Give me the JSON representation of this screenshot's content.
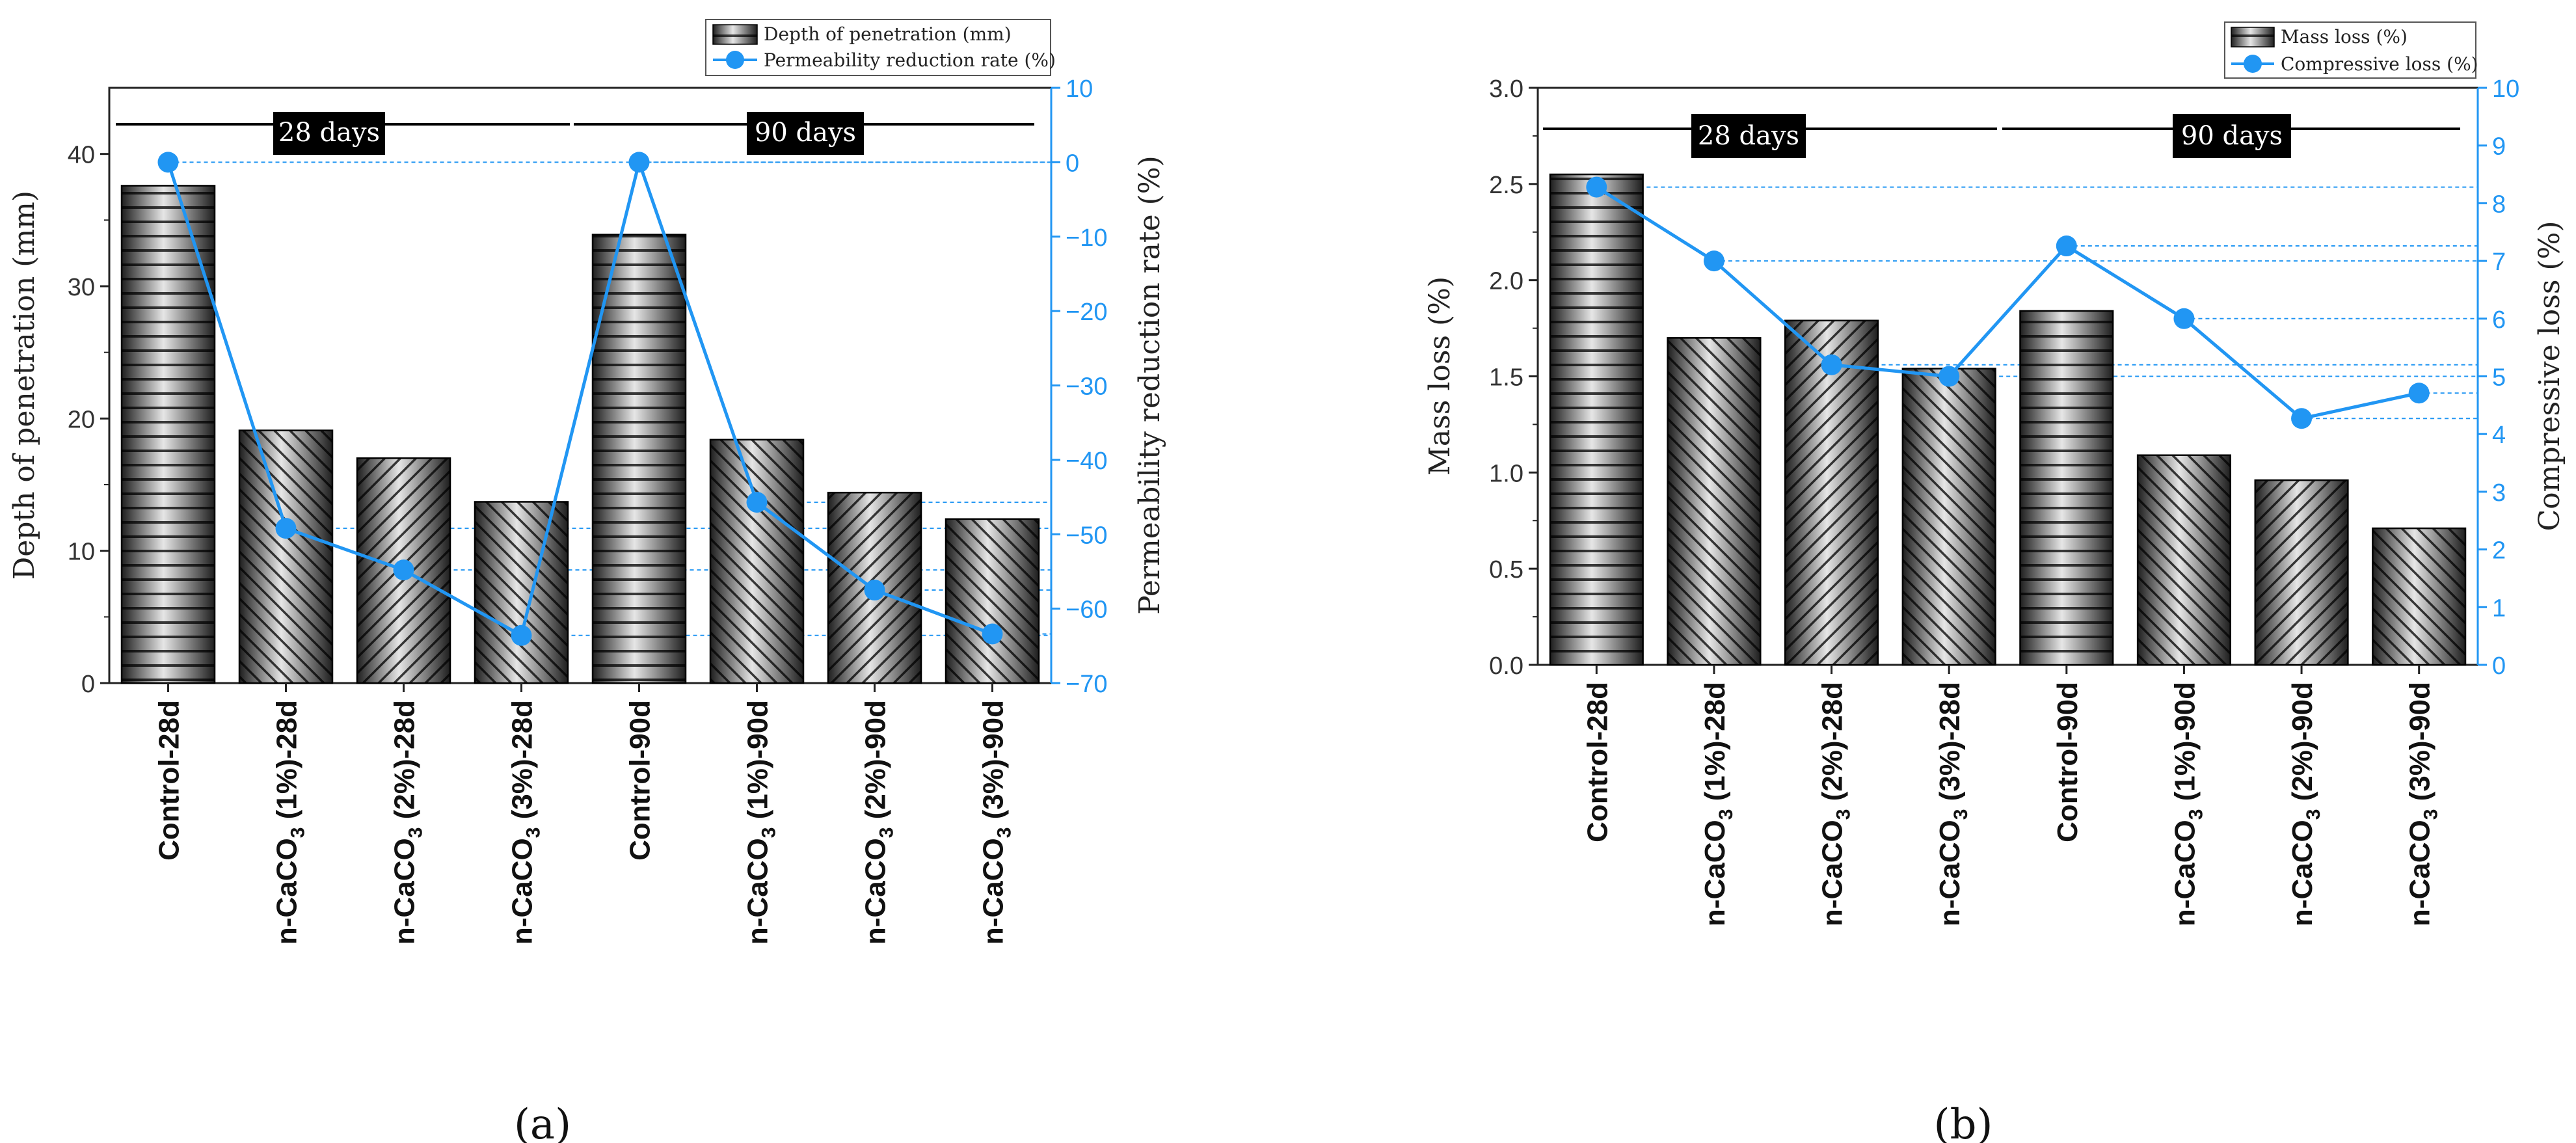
{
  "colors": {
    "line": "#2196f3",
    "axis": "#222222",
    "right_axis": "#2196f3",
    "period_box": "#000000",
    "period_text": "#ffffff",
    "bar_dark": "#1e1e1e",
    "bar_light": "#e6e6e6"
  },
  "chart_data": [
    {
      "panel_label": "(a)",
      "type": "bar",
      "categories": [
        "Control-28d",
        "n-CaCO3 (1%)-28d",
        "n-CaCO3 (2%)-28d",
        "n-CaCO3 (3%)-28d",
        "Control-90d",
        "n-CaCO3 (1%)-90d",
        "n-CaCO3 (2%)-90d",
        "n-CaCO3 (3%)-90d"
      ],
      "category_labels": [
        {
          "pre": "Control-28d",
          "sub": "",
          "post": ""
        },
        {
          "pre": "n-CaCO",
          "sub": "3",
          "post": " (1%)-28d"
        },
        {
          "pre": "n-CaCO",
          "sub": "3",
          "post": " (2%)-28d"
        },
        {
          "pre": "n-CaCO",
          "sub": "3",
          "post": " (3%)-28d"
        },
        {
          "pre": "Control-90d",
          "sub": "",
          "post": ""
        },
        {
          "pre": "n-CaCO",
          "sub": "3",
          "post": " (1%)-90d"
        },
        {
          "pre": "n-CaCO",
          "sub": "3",
          "post": " (2%)-90d"
        },
        {
          "pre": "n-CaCO",
          "sub": "3",
          "post": " (3%)-90d"
        }
      ],
      "hatches": [
        "horizontal",
        "diagonal",
        "diagonal-up",
        "diagonal",
        "horizontal",
        "diagonal",
        "diagonal-up",
        "diagonal"
      ],
      "bar_series": {
        "name": "Depth of penetration (mm)",
        "values": [
          37.6,
          19.1,
          17.0,
          13.7,
          33.9,
          18.4,
          14.4,
          12.4
        ]
      },
      "line_series": {
        "name": "Permeability reduction rate (%)",
        "values": [
          0,
          -49.2,
          -54.8,
          -63.6,
          0,
          -45.7,
          -57.5,
          -63.4
        ]
      },
      "ylabel": "Depth of penetration (mm)",
      "ylim": [
        0,
        45
      ],
      "yticks": [
        0,
        10,
        20,
        30,
        40
      ],
      "y2label": "Permeability reduction rate (%)",
      "y2lim": [
        -70,
        10
      ],
      "y2ticks": [
        -70,
        -60,
        -50,
        -40,
        -30,
        -20,
        -10,
        0,
        10
      ],
      "legend_position": "top-right",
      "period_labels": [
        "28 days",
        "90 days"
      ]
    },
    {
      "panel_label": "(b)",
      "type": "bar",
      "categories": [
        "Control-28d",
        "n-CaCO3 (1%)-28d",
        "n-CaCO3 (2%)-28d",
        "n-CaCO3 (3%)-28d",
        "Control-90d",
        "n-CaCO3 (1%)-90d",
        "n-CaCO3 (2%)-90d",
        "n-CaCO3 (3%)-90d"
      ],
      "category_labels": [
        {
          "pre": "Control-28d",
          "sub": "",
          "post": ""
        },
        {
          "pre": "n-CaCO",
          "sub": "3",
          "post": " (1%)-28d"
        },
        {
          "pre": "n-CaCO",
          "sub": "3",
          "post": " (2%)-28d"
        },
        {
          "pre": "n-CaCO",
          "sub": "3",
          "post": " (3%)-28d"
        },
        {
          "pre": "Control-90d",
          "sub": "",
          "post": ""
        },
        {
          "pre": "n-CaCO",
          "sub": "3",
          "post": " (1%)-90d"
        },
        {
          "pre": "n-CaCO",
          "sub": "3",
          "post": " (2%)-90d"
        },
        {
          "pre": "n-CaCO",
          "sub": "3",
          "post": " (3%)-90d"
        }
      ],
      "hatches": [
        "horizontal",
        "diagonal",
        "diagonal-up",
        "diagonal",
        "horizontal",
        "diagonal",
        "diagonal-up",
        "diagonal"
      ],
      "bar_series": {
        "name": "Mass loss (%)",
        "values": [
          2.55,
          1.7,
          1.79,
          1.54,
          1.84,
          1.09,
          0.96,
          0.71
        ]
      },
      "line_series": {
        "name": "Compressive loss (%)",
        "values": [
          8.28,
          7.0,
          5.2,
          5.0,
          7.26,
          6.0,
          4.27,
          4.71
        ]
      },
      "ylabel": "Mass loss (%)",
      "ylim": [
        0,
        3.0
      ],
      "yticks": [
        0.0,
        0.5,
        1.0,
        1.5,
        2.0,
        2.5,
        3.0
      ],
      "y2label": "Compressive loss (%)",
      "y2lim": [
        0,
        10
      ],
      "y2ticks": [
        0,
        1,
        2,
        3,
        4,
        5,
        6,
        7,
        8,
        9,
        10
      ],
      "legend_position": "top-right",
      "period_labels": [
        "28 days",
        "90 days"
      ]
    }
  ]
}
